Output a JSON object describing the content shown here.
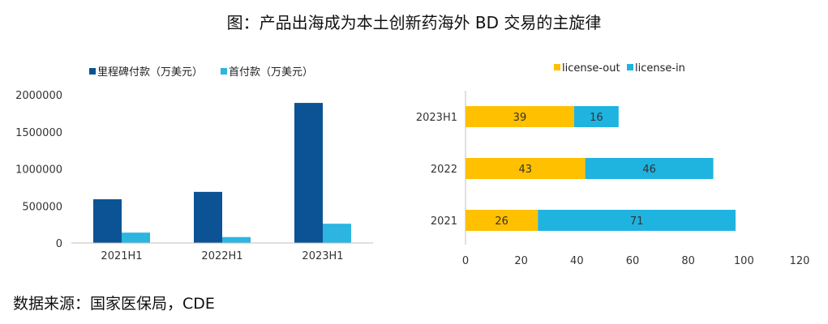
{
  "title": "图：产品出海成为本土创新药海外 BD 交易的主旋律",
  "source": "数据来源：国家医保局，CDE",
  "colors": {
    "milestone": "#0b5394",
    "upfront": "#2bb5e0",
    "license_out": "#ffc000",
    "license_in": "#1fb3e0",
    "axis": "#bfbfbf"
  },
  "chart_data": [
    {
      "type": "bar",
      "categories": [
        "2021H1",
        "2022H1",
        "2023H1"
      ],
      "series": [
        {
          "name": "里程碑付款（万美元）",
          "values": [
            590000,
            690000,
            1890000
          ]
        },
        {
          "name": "首付款（万美元）",
          "values": [
            140000,
            80000,
            260000
          ]
        }
      ],
      "ylim": [
        0,
        2000000
      ],
      "yticks": [
        "0",
        "500000",
        "1000000",
        "1500000",
        "2000000"
      ],
      "yticks_values": [
        0,
        500000,
        1000000,
        1500000,
        2000000
      ],
      "legend": "top"
    },
    {
      "type": "bar",
      "orientation": "horizontal",
      "stacked": true,
      "categories": [
        "2023H1",
        "2022",
        "2021"
      ],
      "series": [
        {
          "name": "license-out",
          "values": [
            39,
            43,
            26
          ],
          "labels": [
            "39",
            "43",
            "26"
          ]
        },
        {
          "name": "license-in",
          "values": [
            16,
            46,
            71
          ],
          "labels": [
            "16",
            "46",
            "71"
          ]
        }
      ],
      "xlim": [
        0,
        120
      ],
      "xticks": [
        "0",
        "20",
        "40",
        "60",
        "80",
        "100",
        "120"
      ],
      "xticks_values": [
        0,
        20,
        40,
        60,
        80,
        100,
        120
      ],
      "legend": "top"
    }
  ]
}
